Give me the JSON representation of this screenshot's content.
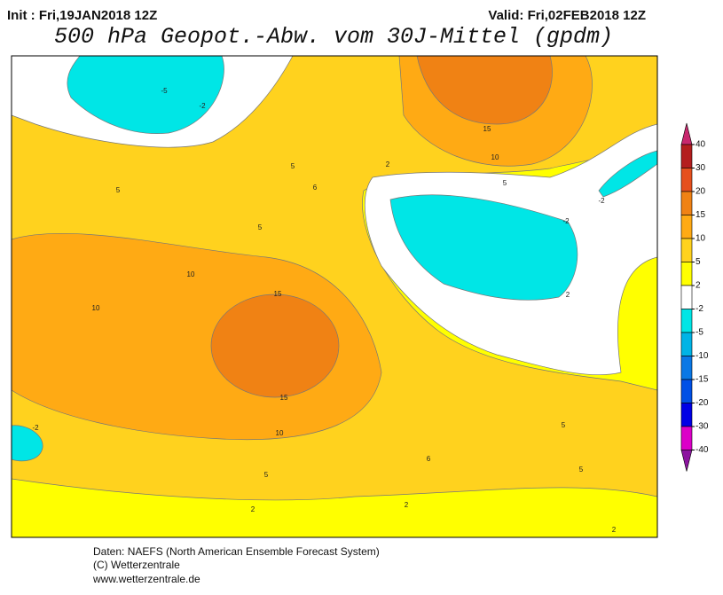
{
  "header": {
    "init": "Init : Fri,19JAN2018 12Z",
    "valid": "Valid: Fri,02FEB2018 12Z",
    "title": "500 hPa Geopot.-Abw. vom 30J-Mittel (gpdm)"
  },
  "map": {
    "contour_labels": [
      -5,
      -2,
      15,
      10,
      5,
      2,
      6,
      5,
      5,
      5,
      -2,
      -2,
      10,
      15,
      10,
      15,
      10,
      5,
      2,
      -2,
      5,
      6,
      5,
      2,
      2,
      2
    ]
  },
  "colorbar": {
    "levels": [
      40,
      30,
      20,
      15,
      10,
      5,
      2,
      -2,
      -5,
      -10,
      -15,
      -20,
      -30,
      -40
    ],
    "colors": [
      "#c8286e",
      "#b41e1e",
      "#e6501e",
      "#f08214",
      "#ffaa14",
      "#ffd21e",
      "#ffff00",
      "#ffffff",
      "#00e6e6",
      "#00b4e6",
      "#0a78e6",
      "#0050e6",
      "#0000e6",
      "#dc00c8",
      "#8c14a0"
    ]
  },
  "footer": {
    "lines": [
      "Daten: NAEFS (North American Ensemble Forecast System)",
      "(C) Wetterzentrale",
      "www.wetterzentrale.de"
    ]
  }
}
